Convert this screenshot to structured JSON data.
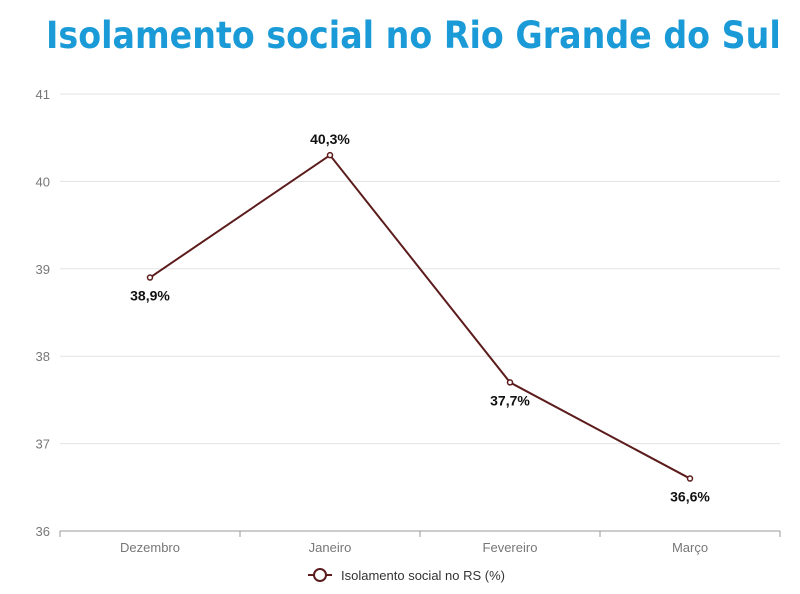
{
  "chart_data": {
    "type": "line",
    "title": "Isolamento social no Rio Grande do Sul",
    "categories": [
      "Dezembro",
      "Janeiro",
      "Fevereiro",
      "Março"
    ],
    "series": [
      {
        "name": "Isolamento social no RS (%)",
        "values": [
          38.9,
          40.3,
          37.7,
          36.6
        ],
        "labels": [
          "38,9%",
          "40,3%",
          "37,7%",
          "36,6%"
        ],
        "color": "#5c1c1c"
      }
    ],
    "ylim": [
      36,
      41
    ],
    "yticks": [
      36,
      37,
      38,
      39,
      40,
      41
    ],
    "xlabel": "",
    "ylabel": "",
    "grid": true,
    "legend": "bottom-center",
    "title_color": "#1a9ad6"
  }
}
